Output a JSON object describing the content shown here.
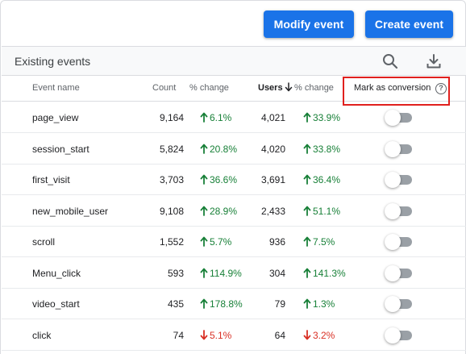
{
  "toolbar": {
    "modify_label": "Modify event",
    "create_label": "Create event"
  },
  "subheader": {
    "title": "Existing events",
    "search_icon": "search-icon",
    "download_icon": "download-icon"
  },
  "columns": {
    "event_name": "Event name",
    "count": "Count",
    "count_change": "% change",
    "users": "Users",
    "users_sort_icon": "arrow-down-icon",
    "users_change": "% change",
    "mark_conversion": "Mark as conversion",
    "help_icon": "?"
  },
  "colors": {
    "accent": "#1a73e8",
    "positive": "#188038",
    "negative": "#d93025",
    "highlight": "#e0201e"
  },
  "rows": [
    {
      "name": "page_view",
      "count": "9,164",
      "count_change": "6.1%",
      "count_dir": "up",
      "users": "4,021",
      "users_change": "33.9%",
      "users_dir": "up",
      "conversion": false
    },
    {
      "name": "session_start",
      "count": "5,824",
      "count_change": "20.8%",
      "count_dir": "up",
      "users": "4,020",
      "users_change": "33.8%",
      "users_dir": "up",
      "conversion": false
    },
    {
      "name": "first_visit",
      "count": "3,703",
      "count_change": "36.6%",
      "count_dir": "up",
      "users": "3,691",
      "users_change": "36.4%",
      "users_dir": "up",
      "conversion": false
    },
    {
      "name": "new_mobile_user",
      "count": "9,108",
      "count_change": "28.9%",
      "count_dir": "up",
      "users": "2,433",
      "users_change": "51.1%",
      "users_dir": "up",
      "conversion": false
    },
    {
      "name": "scroll",
      "count": "1,552",
      "count_change": "5.7%",
      "count_dir": "up",
      "users": "936",
      "users_change": "7.5%",
      "users_dir": "up",
      "conversion": false
    },
    {
      "name": "Menu_click",
      "count": "593",
      "count_change": "114.9%",
      "count_dir": "up",
      "users": "304",
      "users_change": "141.3%",
      "users_dir": "up",
      "conversion": false
    },
    {
      "name": "video_start",
      "count": "435",
      "count_change": "178.8%",
      "count_dir": "up",
      "users": "79",
      "users_change": "1.3%",
      "users_dir": "up",
      "conversion": false
    },
    {
      "name": "click",
      "count": "74",
      "count_change": "5.1%",
      "count_dir": "down",
      "users": "64",
      "users_change": "3.2%",
      "users_dir": "down",
      "conversion": false
    }
  ]
}
